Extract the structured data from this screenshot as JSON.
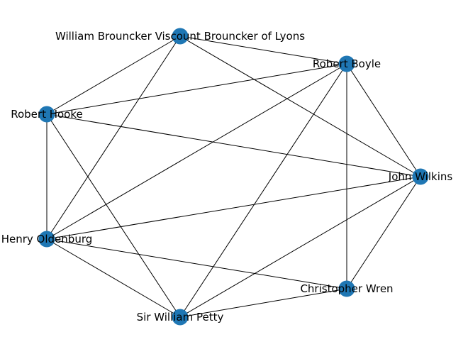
{
  "graph": {
    "node_color": "#1f77b4",
    "edge_color": "#000000",
    "nodes": [
      {
        "id": "brouncker",
        "label": "William Brouncker Viscount Brouncker of Lyons"
      },
      {
        "id": "boyle",
        "label": "Robert Boyle"
      },
      {
        "id": "hooke",
        "label": "Robert Hooke"
      },
      {
        "id": "wilkins",
        "label": "John Wilkins"
      },
      {
        "id": "oldenburg",
        "label": "Henry Oldenburg"
      },
      {
        "id": "wren",
        "label": "Christopher Wren"
      },
      {
        "id": "petty",
        "label": "Sir William Petty"
      }
    ],
    "edges": [
      [
        "brouncker",
        "boyle"
      ],
      [
        "brouncker",
        "hooke"
      ],
      [
        "brouncker",
        "oldenburg"
      ],
      [
        "brouncker",
        "wilkins"
      ],
      [
        "boyle",
        "hooke"
      ],
      [
        "boyle",
        "oldenburg"
      ],
      [
        "boyle",
        "petty"
      ],
      [
        "boyle",
        "wren"
      ],
      [
        "boyle",
        "wilkins"
      ],
      [
        "hooke",
        "wilkins"
      ],
      [
        "hooke",
        "oldenburg"
      ],
      [
        "hooke",
        "petty"
      ],
      [
        "wilkins",
        "oldenburg"
      ],
      [
        "wilkins",
        "petty"
      ],
      [
        "wilkins",
        "wren"
      ],
      [
        "oldenburg",
        "wren"
      ],
      [
        "oldenburg",
        "petty"
      ],
      [
        "wren",
        "petty"
      ]
    ]
  }
}
